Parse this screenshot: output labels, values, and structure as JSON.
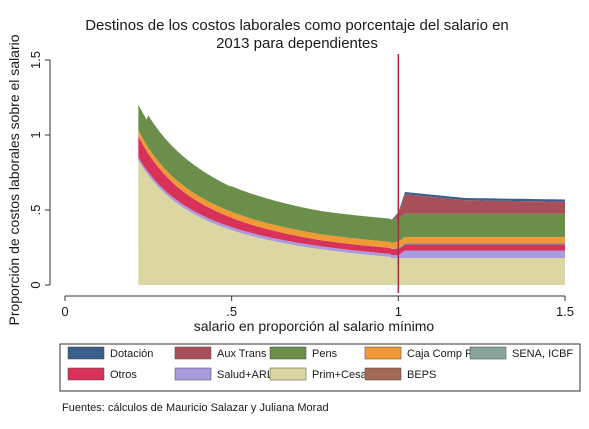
{
  "chart_data": {
    "type": "area",
    "title_lines": [
      "Destinos de los costos laborales como porcentaje del salario en",
      "2013 para dependientes"
    ],
    "xlabel": "salario en proporción al salario mínimo",
    "ylabel": "Proporción de costos laborales sobre el salario",
    "xlim": [
      0,
      1.5
    ],
    "ylim": [
      0,
      1.5
    ],
    "xticks": [
      0,
      0.5,
      1,
      1.5
    ],
    "xtick_labels": [
      "0",
      ".5",
      "1",
      "1.5"
    ],
    "yticks": [
      0,
      0.5,
      1,
      1.5
    ],
    "ytick_labels": [
      "0",
      ".5",
      "1",
      "1.5"
    ],
    "vline_x": 1,
    "vline_color": "#b0263e",
    "grid": false,
    "legend_position": "bottom",
    "source": "Fuentes: cálculos de Mauricio Salazar y Juliana Morad",
    "series": [
      {
        "name": "Dotación",
        "color": "#3a5f8a",
        "points": [
          [
            0.98,
            0
          ],
          [
            1.0,
            0.01
          ],
          [
            1.02,
            0.015
          ],
          [
            1.2,
            0.015
          ],
          [
            1.5,
            0.015
          ]
        ]
      },
      {
        "name": "Aux Trans",
        "color": "#a8505a",
        "points": [
          [
            0.98,
            0
          ],
          [
            1.0,
            0.03
          ],
          [
            1.02,
            0.13
          ],
          [
            1.2,
            0.09
          ],
          [
            1.5,
            0.08
          ]
        ]
      },
      {
        "name": "Pens",
        "color": "#6b8e4a",
        "points": [
          [
            0.22,
            0.17
          ],
          [
            0.24,
            0.17
          ],
          [
            0.25,
            0.21
          ],
          [
            0.5,
            0.16
          ],
          [
            0.52,
            0.16
          ],
          [
            0.5,
            0.16
          ],
          [
            0.75,
            0.16
          ],
          [
            1.0,
            0.16
          ],
          [
            1.5,
            0.16
          ]
        ]
      },
      {
        "name": "Caja Comp F",
        "color": "#f19a35",
        "points": [
          [
            0.22,
            0.04
          ],
          [
            1.5,
            0.04
          ]
        ]
      },
      {
        "name": "SENA, ICBF",
        "color": "#87a59a",
        "points": [
          [
            0.98,
            0
          ],
          [
            1.0,
            0.01
          ],
          [
            1.02,
            0.01
          ],
          [
            1.5,
            0.01
          ]
        ]
      },
      {
        "name": "Otros",
        "color": "#d9325a",
        "points": [
          [
            0.22,
            0.14
          ],
          [
            0.5,
            0.06
          ],
          [
            1.0,
            0.04
          ],
          [
            1.5,
            0.04
          ]
        ]
      },
      {
        "name": "Salud+ARL",
        "color": "#a99bdc",
        "points": [
          [
            0.22,
            0.02
          ],
          [
            0.5,
            0.02
          ],
          [
            1.0,
            0.02
          ],
          [
            1.02,
            0.05
          ],
          [
            1.5,
            0.05
          ]
        ]
      },
      {
        "name": "Prim+Cesa",
        "color": "#dcd6a3",
        "points": [
          [
            0.22,
            0.83
          ],
          [
            0.5,
            0.36
          ],
          [
            1.0,
            0.18
          ],
          [
            1.5,
            0.18
          ]
        ]
      },
      {
        "name": "BEPS",
        "color": "#a26a54",
        "points": [
          [
            0.22,
            0
          ],
          [
            1.5,
            0
          ]
        ]
      }
    ],
    "stack_order_bottom_up": [
      "Prim+Cesa",
      "Salud+ARL",
      "Otros",
      "SENA, ICBF",
      "Caja Comp F",
      "Pens",
      "Aux Trans",
      "Dotación"
    ]
  }
}
